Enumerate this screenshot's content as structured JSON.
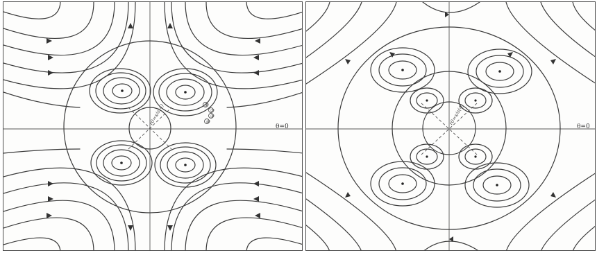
{
  "panels": [
    {
      "id": "left",
      "radius_label": "r0=s/a(4)",
      "angle_label": "θ=0",
      "markers": [
        "①",
        "②",
        "③",
        "④"
      ]
    },
    {
      "id": "right",
      "radius_label": "r0=s/a(4)",
      "angle_label": "θ=0"
    }
  ]
}
